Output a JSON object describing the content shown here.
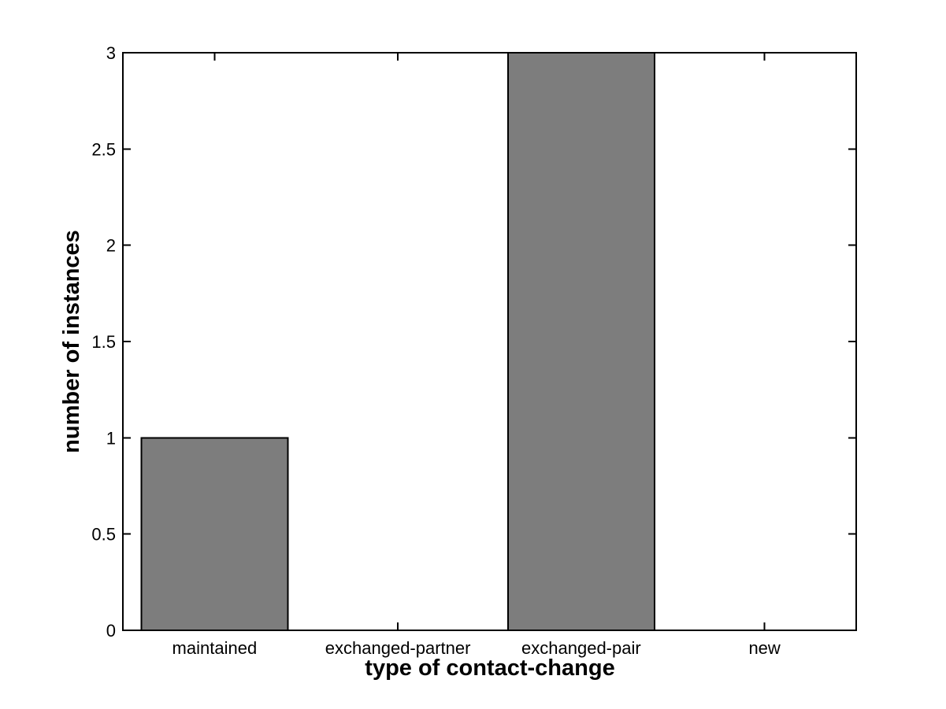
{
  "chart_data": {
    "type": "bar",
    "title": "",
    "categories": [
      "maintained",
      "exchanged-partner",
      "exchanged-pair",
      "new"
    ],
    "values": [
      1,
      0,
      3,
      0
    ],
    "xlabel": "type of contact-change",
    "ylabel": "number of instances",
    "ylim": [
      0,
      3
    ],
    "yticks": [
      0,
      0.5,
      1,
      1.5,
      2,
      2.5,
      3
    ],
    "ytick_labels": [
      "0",
      "0.5",
      "1",
      "1.5",
      "2",
      "2.5",
      "3"
    ],
    "bar_width_fraction": 0.8,
    "grid": false,
    "legend": null,
    "colors": {
      "bar_fill": "#7d7d7d",
      "bar_edge": "#000000",
      "axis": "#000000",
      "background": "#ffffff",
      "text": "#000000"
    }
  }
}
